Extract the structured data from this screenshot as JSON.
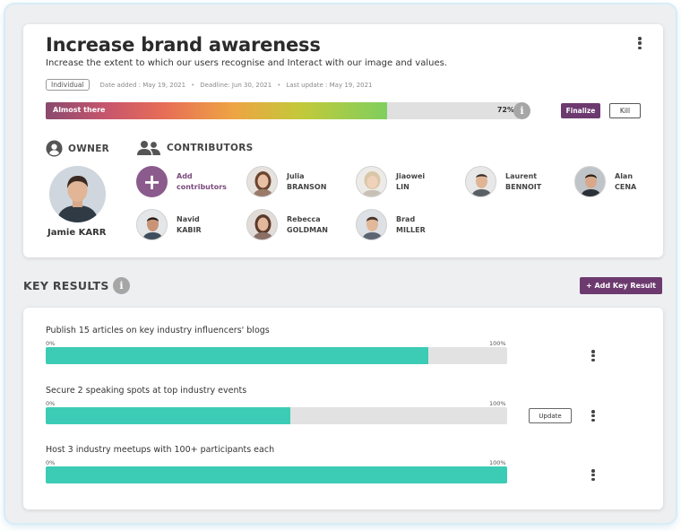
{
  "objective": {
    "title": "Increase brand awareness",
    "description": "Increase the extent to which our users recognise and Interact with our image and values.",
    "type_badge": "Individual",
    "date_added": "Date added : May 19, 2021",
    "deadline": "Deadline: Jun 30, 2021",
    "last_update": "Last update : May 19, 2021",
    "meta_separator": "•",
    "progress": {
      "label": "Almost there",
      "percent_text": "72%",
      "value": 0.72
    },
    "info_glyph": "i",
    "finalize_label": "Finalize",
    "kill_label": "Kill",
    "menu_icon": "kebab-icon"
  },
  "owner": {
    "heading": "OWNER",
    "icon": "user-circle-icon",
    "name": "Jamie KARR"
  },
  "contributors": {
    "heading": "CONTRIBUTORS",
    "icon": "users-icon",
    "add_glyph": "+",
    "add_line1": "Add",
    "add_line2": "contributors",
    "people": [
      {
        "first": "Julia",
        "last": "BRANSON"
      },
      {
        "first": "Jiaowei",
        "last": "LIN"
      },
      {
        "first": "Laurent",
        "last": "BENNOIT"
      },
      {
        "first": "Alan",
        "last": "CENA"
      },
      {
        "first": "Navid",
        "last": "KABIR"
      },
      {
        "first": "Rebecca",
        "last": "GOLDMAN"
      },
      {
        "first": "Brad",
        "last": "MILLER"
      }
    ]
  },
  "key_results": {
    "heading": "KEY RESULTS",
    "info_glyph": "i",
    "add_label": "+ Add Key Result",
    "min_label": "0%",
    "max_label": "100%",
    "update_label": "Update",
    "items": [
      {
        "title": "Publish 15 articles on key industry influencers' blogs",
        "progress": 0.83
      },
      {
        "title": "Secure 2 speaking spots at top industry events",
        "progress": 0.53
      },
      {
        "title": "Host 3 industry meetups with 100+ participants each",
        "progress": 1.0
      }
    ]
  },
  "colors": {
    "accent_purple": "#6d3a6f",
    "key_result_fill": "#3cccb5",
    "progress_gradient_start": "#8a4a6e",
    "progress_gradient_end": "#7fcf5e"
  }
}
